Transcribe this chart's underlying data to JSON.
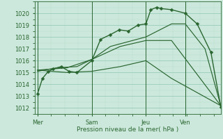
{
  "bg_color": "#cce8dc",
  "grid_color_major": "#99ccbb",
  "grid_color_minor": "#bbddcc",
  "line_color": "#2a6630",
  "xlabel": "Pression niveau de la mer( hPa )",
  "ylim": [
    1011.5,
    1021.0
  ],
  "yticks": [
    1012,
    1013,
    1014,
    1015,
    1016,
    1017,
    1018,
    1019,
    1020
  ],
  "day_labels": [
    "Mer",
    "Sam",
    "Jeu",
    "Ven"
  ],
  "day_positions": [
    0.0,
    2.75,
    5.5,
    7.5
  ],
  "xlim": [
    -0.15,
    9.3
  ],
  "main_x": [
    0,
    0.25,
    0.55,
    0.8,
    1.2,
    1.6,
    2.0,
    2.75,
    3.2,
    3.7,
    4.15,
    4.6,
    5.1,
    5.5,
    5.75,
    6.05,
    6.25,
    6.8,
    7.5,
    8.1,
    8.8,
    9.3
  ],
  "main_y": [
    1013.2,
    1014.5,
    1015.1,
    1015.3,
    1015.5,
    1015.1,
    1015.0,
    1016.0,
    1017.8,
    1018.2,
    1018.6,
    1018.5,
    1019.0,
    1019.1,
    1020.3,
    1020.5,
    1020.4,
    1020.3,
    1020.0,
    1019.1,
    1016.7,
    1012.1
  ],
  "thin_lines": [
    {
      "x": [
        0,
        1.0,
        2.0,
        2.75,
        3.7,
        4.6,
        5.5,
        6.8,
        7.5,
        8.5,
        9.3
      ],
      "y": [
        1015.1,
        1015.4,
        1015.5,
        1016.1,
        1017.2,
        1017.6,
        1018.0,
        1019.1,
        1019.1,
        1017.0,
        1012.2
      ]
    },
    {
      "x": [
        0,
        1.5,
        2.75,
        4.2,
        5.5,
        6.8,
        9.3
      ],
      "y": [
        1015.2,
        1015.4,
        1016.1,
        1017.2,
        1017.7,
        1017.7,
        1012.2
      ]
    },
    {
      "x": [
        0,
        1.5,
        2.75,
        4.2,
        5.5,
        6.8,
        9.3
      ],
      "y": [
        1015.2,
        1015.0,
        1015.1,
        1015.5,
        1016.0,
        1014.5,
        1012.2
      ]
    }
  ]
}
